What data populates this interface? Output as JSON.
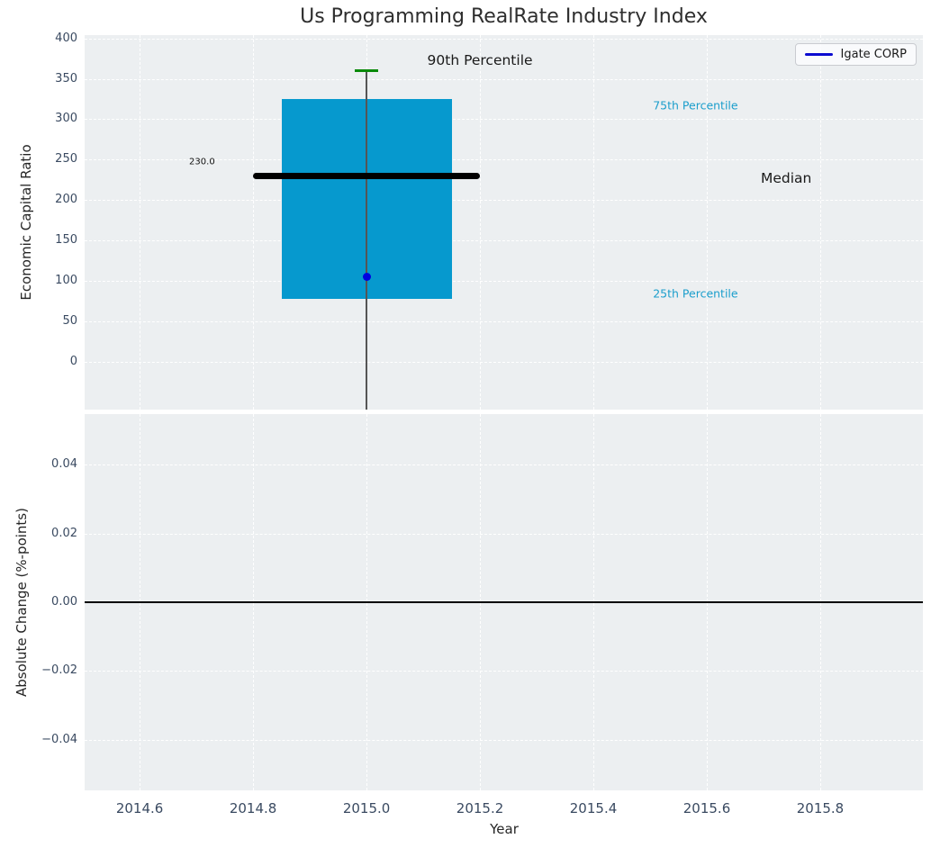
{
  "legend": {
    "label": "Igate CORP"
  },
  "colors": {
    "box_fill": "#0699ce",
    "whisker": "#555555",
    "median_line": "#000000",
    "p90_cap": "#0a8a0a",
    "company_point": "#0000e0",
    "legend_line": "#0b0bd0",
    "percentile_text": "#1b9ecc",
    "zero_line": "#000000",
    "axes_background": "#eceff1",
    "grid": "#ffffff",
    "tick_text": "#3a4a61"
  },
  "x_axis": {
    "label": "Year",
    "xlim": [
      2014.503,
      2015.981
    ],
    "ticks": [
      {
        "label": "2014.6",
        "value": 2014.6
      },
      {
        "label": "2014.8",
        "value": 2014.8
      },
      {
        "label": "2015.0",
        "value": 2015.0
      },
      {
        "label": "2015.2",
        "value": 2015.2
      },
      {
        "label": "2015.4",
        "value": 2015.4
      },
      {
        "label": "2015.6",
        "value": 2015.6
      },
      {
        "label": "2015.8",
        "value": 2015.8
      }
    ]
  },
  "chart_data": [
    {
      "type": "box",
      "title": "Us Programming RealRate Industry Index",
      "ylabel": "Economic Capital Ratio",
      "ylim": [
        -59,
        404
      ],
      "yticks": [
        {
          "label": "0",
          "value": 0
        },
        {
          "label": "50",
          "value": 50
        },
        {
          "label": "100",
          "value": 100
        },
        {
          "label": "150",
          "value": 150
        },
        {
          "label": "200",
          "value": 200
        },
        {
          "label": "250",
          "value": 250
        },
        {
          "label": "300",
          "value": 300
        },
        {
          "label": "350",
          "value": 350
        },
        {
          "label": "400",
          "value": 400
        }
      ],
      "grid": true,
      "legend_position": "upper right",
      "box": {
        "x_center": 2015.0,
        "x_left": 2014.85,
        "x_right": 2015.15,
        "p25": 78,
        "median": 230,
        "p75": 325,
        "p90": 360,
        "median_x_left": 2014.8,
        "median_x_right": 2015.2,
        "whisker_bottom_clipped_at_axis": true
      },
      "company_point": {
        "label": "Igate CORP",
        "x": 2015.0,
        "y": 105
      },
      "annotations": [
        {
          "name": "annotation-90th-percentile",
          "text": "90th Percentile",
          "x": 2015.2,
          "y": 373,
          "style": "black-large"
        },
        {
          "name": "annotation-75th-percentile",
          "text": "75th Percentile",
          "x": 2015.58,
          "y": 317,
          "style": "cyan"
        },
        {
          "name": "annotation-median",
          "text": "Median",
          "x": 2015.74,
          "y": 227,
          "style": "black-large"
        },
        {
          "name": "annotation-25th-percentile",
          "text": "25th Percentile",
          "x": 2015.58,
          "y": 85,
          "style": "cyan"
        },
        {
          "name": "annotation-median-value",
          "text": "230.0",
          "x": 2014.71,
          "y": 247,
          "style": "black-small"
        }
      ]
    },
    {
      "type": "line",
      "ylabel": "Absolute Change (%-points)",
      "ylim": [
        -0.0548,
        0.0548
      ],
      "yticks": [
        {
          "label": "0.04",
          "value": 0.04
        },
        {
          "label": "0.02",
          "value": 0.02
        },
        {
          "label": "0.00",
          "value": 0.0
        },
        {
          "label": "−0.02",
          "value": -0.02
        },
        {
          "label": "−0.04",
          "value": -0.04
        }
      ],
      "grid": true,
      "zero_line": 0.0,
      "series": []
    }
  ]
}
